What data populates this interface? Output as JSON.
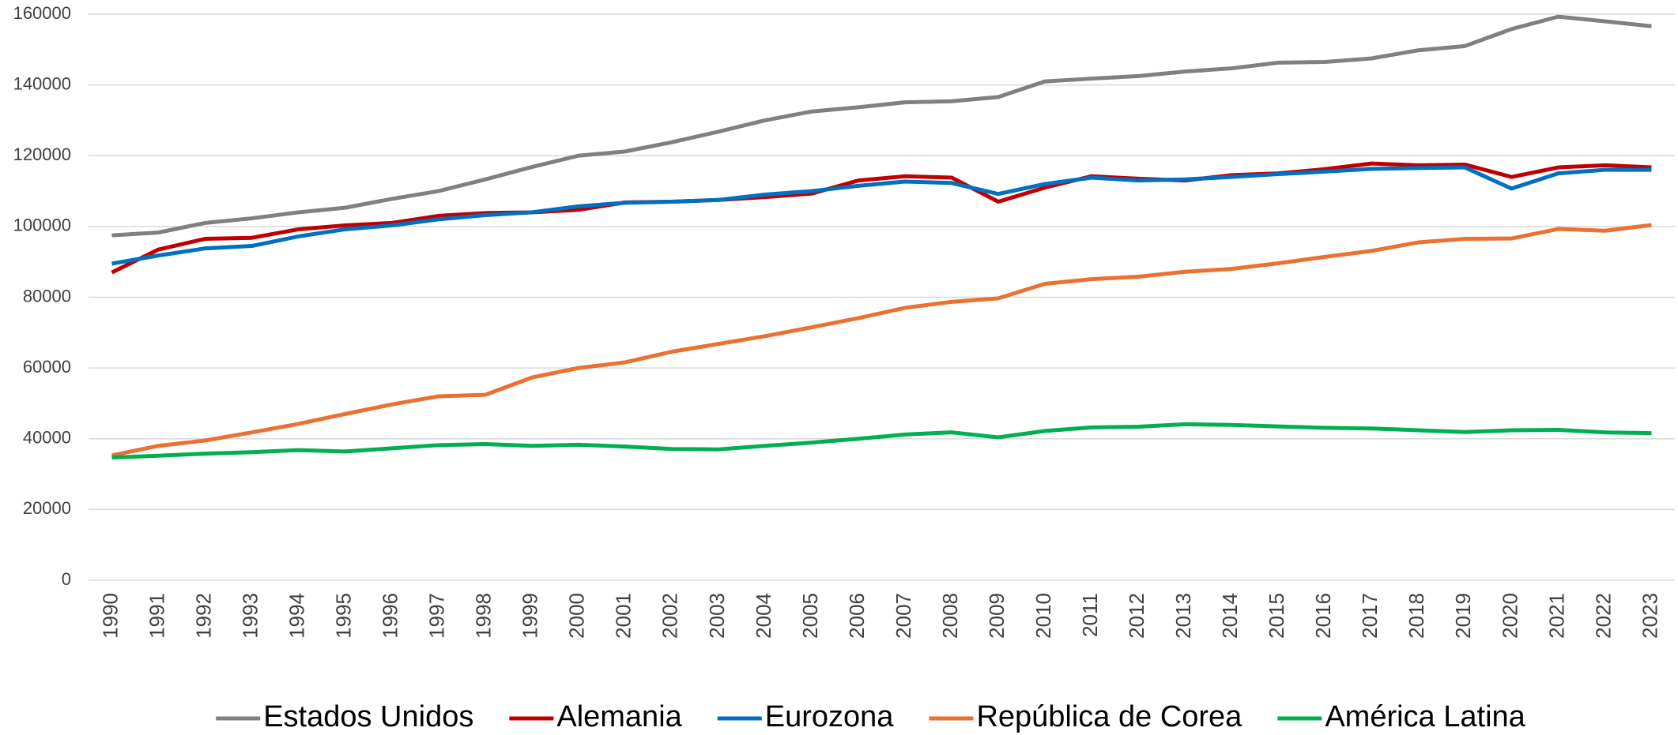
{
  "chart_data": {
    "type": "line",
    "categories": [
      "1990",
      "1991",
      "1992",
      "1993",
      "1994",
      "1995",
      "1996",
      "1997",
      "1998",
      "1999",
      "2000",
      "2001",
      "2002",
      "2003",
      "2004",
      "2005",
      "2006",
      "2007",
      "2008",
      "2009",
      "2010",
      "2011",
      "2012",
      "2013",
      "2014",
      "2015",
      "2016",
      "2017",
      "2018",
      "2019",
      "2020",
      "2021",
      "2022",
      "2023"
    ],
    "series": [
      {
        "name": "Estados Unidos",
        "color": "#808080",
        "values": [
          97500,
          98300,
          101000,
          102300,
          104000,
          105300,
          107800,
          110000,
          113300,
          116800,
          120000,
          121200,
          123800,
          126800,
          130000,
          132500,
          133700,
          135100,
          135400,
          136600,
          141000,
          141800,
          142500,
          143800,
          144700,
          146300,
          146500,
          147500,
          149800,
          151000,
          155800,
          159300,
          158000,
          156600
        ]
      },
      {
        "name": "Alemania",
        "color": "#c00000",
        "values": [
          87000,
          93500,
          96500,
          96800,
          99200,
          100300,
          101000,
          103000,
          103800,
          104000,
          104700,
          106800,
          107000,
          107500,
          108300,
          109300,
          113000,
          114200,
          113800,
          107000,
          111000,
          114200,
          113500,
          113000,
          114500,
          115000,
          116200,
          117800,
          117300,
          117500,
          114000,
          116700,
          117300,
          116700
        ]
      },
      {
        "name": "Eurozona",
        "color": "#0070c0",
        "values": [
          89500,
          91800,
          93800,
          94500,
          97200,
          99200,
          100300,
          102000,
          103200,
          104000,
          105700,
          106700,
          107000,
          107500,
          109000,
          110000,
          111500,
          112700,
          112300,
          109200,
          112000,
          113800,
          113000,
          113300,
          114000,
          114800,
          115500,
          116300,
          116500,
          116700,
          110700,
          115000,
          116000,
          116000
        ]
      },
      {
        "name": "República de Corea",
        "color": "#e97132",
        "values": [
          35300,
          38000,
          39500,
          41800,
          44200,
          47000,
          49700,
          52000,
          52400,
          57300,
          60000,
          61600,
          64600,
          66800,
          69000,
          71500,
          74100,
          77000,
          78700,
          79700,
          83800,
          85100,
          85800,
          87200,
          88000,
          89600,
          91400,
          93100,
          95500,
          96500,
          96600,
          99300,
          98800,
          100400
        ]
      },
      {
        "name": "América Latina",
        "color": "#00b050",
        "values": [
          34700,
          35200,
          35800,
          36200,
          36800,
          36400,
          37300,
          38200,
          38500,
          38000,
          38300,
          37800,
          37100,
          37000,
          38000,
          38900,
          40000,
          41200,
          41800,
          40400,
          42200,
          43200,
          43400,
          44100,
          43900,
          43500,
          43100,
          42900,
          42400,
          41900,
          42400,
          42500,
          41800,
          41600
        ]
      }
    ],
    "ylim": [
      0,
      160000
    ],
    "yticks": [
      0,
      20000,
      40000,
      60000,
      80000,
      100000,
      120000,
      140000,
      160000
    ],
    "grid": true,
    "legend": "bottom"
  }
}
